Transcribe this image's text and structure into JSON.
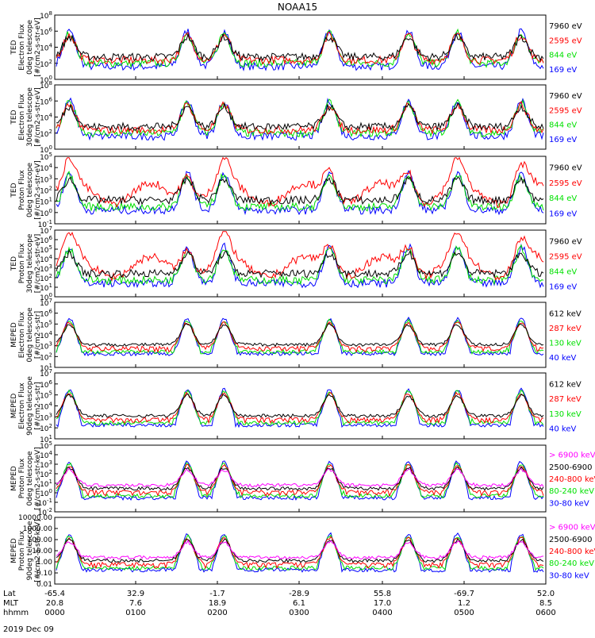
{
  "title": "NOAA15",
  "date_label": "2019 Dec 09",
  "colors": {
    "blue": "#0000ff",
    "red": "#ff0000",
    "green": "#00e000",
    "black": "#000000",
    "magenta": "#ff00ff"
  },
  "chart_data": {
    "type": "line",
    "x": {
      "row_labels": [
        "Lat",
        "MLT",
        "hhmm"
      ],
      "ticks": [
        {
          "lat": "-65.4",
          "mlt": "20.8",
          "hhmm": "0000"
        },
        {
          "lat": "32.9",
          "mlt": "7.6",
          "hhmm": "0100"
        },
        {
          "lat": "-1.7",
          "mlt": "18.9",
          "hhmm": "0200"
        },
        {
          "lat": "-28.9",
          "mlt": "6.1",
          "hhmm": "0300"
        },
        {
          "lat": "55.8",
          "mlt": "17.0",
          "hhmm": "0400"
        },
        {
          "lat": "-69.7",
          "mlt": "1.2",
          "hhmm": "0500"
        },
        {
          "lat": "52.0",
          "mlt": "8.5",
          "hhmm": "0600"
        }
      ]
    },
    "panels": [
      {
        "id": "ted-e-0",
        "ylabel_lines": [
          "TED",
          "Electron Flux",
          "0deg telescope",
          "[#/cm2-s-str-eV]"
        ],
        "ytick_exps": [
          "0",
          "2",
          "4",
          "6",
          "8"
        ],
        "yexp_range": [
          0,
          8
        ],
        "legend": [
          {
            "text": "7960 eV",
            "color": "black"
          },
          {
            "text": "2595 eV",
            "color": "red"
          },
          {
            "text": "844 eV",
            "color": "green"
          },
          {
            "text": "169 eV",
            "color": "blue"
          }
        ]
      },
      {
        "id": "ted-e-30",
        "ylabel_lines": [
          "TED",
          "Electron Flux",
          "30deg telescope",
          "[#/cm2-s-str-eV]"
        ],
        "ytick_exps": [
          "0",
          "2",
          "4",
          "6",
          "8"
        ],
        "yexp_range": [
          0,
          8
        ],
        "legend": [
          {
            "text": "7960 eV",
            "color": "black"
          },
          {
            "text": "2595 eV",
            "color": "red"
          },
          {
            "text": "844 eV",
            "color": "green"
          },
          {
            "text": "169 eV",
            "color": "blue"
          }
        ]
      },
      {
        "id": "ted-p-0",
        "ylabel_lines": [
          "TED",
          "Proton Flux",
          "0deg telescope",
          "[#/cm2-s-str-eV]"
        ],
        "ytick_exps": [
          "-1",
          "0",
          "1",
          "2",
          "3",
          "4",
          "5"
        ],
        "yexp_range": [
          -1,
          5
        ],
        "legend": [
          {
            "text": "7960 eV",
            "color": "black"
          },
          {
            "text": "2595 eV",
            "color": "red"
          },
          {
            "text": "844 eV",
            "color": "green"
          },
          {
            "text": "169 eV",
            "color": "blue"
          }
        ]
      },
      {
        "id": "ted-p-30",
        "ylabel_lines": [
          "TED",
          "Proton Flux",
          "30deg telescope",
          "[#/cm2-s-str-eV]"
        ],
        "ytick_exps": [
          "0",
          "1",
          "2",
          "3",
          "4",
          "5",
          "6",
          "7"
        ],
        "yexp_range": [
          0,
          7
        ],
        "legend": [
          {
            "text": "7960 eV",
            "color": "black"
          },
          {
            "text": "2595 eV",
            "color": "red"
          },
          {
            "text": "844 eV",
            "color": "green"
          },
          {
            "text": "169 eV",
            "color": "blue"
          }
        ]
      },
      {
        "id": "meped-e-0",
        "ylabel_lines": [
          "MEPED",
          "Electron Flux",
          "0deg telescope",
          "[#/cm2-s-str]"
        ],
        "ytick_exps": [
          "1",
          "2",
          "3",
          "4",
          "5",
          "6",
          "7"
        ],
        "yexp_range": [
          1,
          7
        ],
        "legend": [
          {
            "text": "612 keV",
            "color": "black"
          },
          {
            "text": "287 keV",
            "color": "red"
          },
          {
            "text": "130 keV",
            "color": "green"
          },
          {
            "text": "40 keV",
            "color": "blue"
          }
        ]
      },
      {
        "id": "meped-e-90",
        "ylabel_lines": [
          "MEPED",
          "Electron Flux",
          "90deg telescope",
          "[#/cm2-s-str]"
        ],
        "ytick_exps": [
          "1",
          "2",
          "3",
          "4",
          "5",
          "6",
          "7"
        ],
        "yexp_range": [
          1,
          7
        ],
        "legend": [
          {
            "text": "612 keV",
            "color": "black"
          },
          {
            "text": "287 keV",
            "color": "red"
          },
          {
            "text": "130 keV",
            "color": "green"
          },
          {
            "text": "40 keV",
            "color": "blue"
          }
        ]
      },
      {
        "id": "meped-p-0",
        "ylabel_lines": [
          "MEPED",
          "Proton Flux",
          "0deg telescope",
          "[#/cm2-s-str-keV]"
        ],
        "ytick_exps": [
          "-2",
          "-1",
          "0",
          "1",
          "2",
          "3",
          "4",
          "5"
        ],
        "yexp_range": [
          -2,
          5
        ],
        "legend": [
          {
            "text": "> 6900 keV",
            "color": "magenta"
          },
          {
            "text": "2500-6900",
            "color": "black"
          },
          {
            "text": "240-800 keV",
            "color": "red"
          },
          {
            "text": "80-240 keV",
            "color": "green"
          },
          {
            "text": "30-80 keV",
            "color": "blue"
          }
        ]
      },
      {
        "id": "meped-p-90",
        "ylabel_lines": [
          "MEPED",
          "Proton Flux",
          "90deg telescope",
          "[#/cm2-s-str-keV]"
        ],
        "ytick_labels": [
          "0.01",
          "0.10",
          "1.00",
          "10.00",
          "100.00",
          "1000.00",
          "10000.00"
        ],
        "yexp_range": [
          -2,
          4
        ],
        "legend": [
          {
            "text": "> 6900 keV",
            "color": "magenta"
          },
          {
            "text": "2500-6900",
            "color": "black"
          },
          {
            "text": "240-800 keV",
            "color": "red"
          },
          {
            "text": "80-240 keV",
            "color": "green"
          },
          {
            "text": "30-80 keV",
            "color": "blue"
          }
        ]
      }
    ]
  }
}
